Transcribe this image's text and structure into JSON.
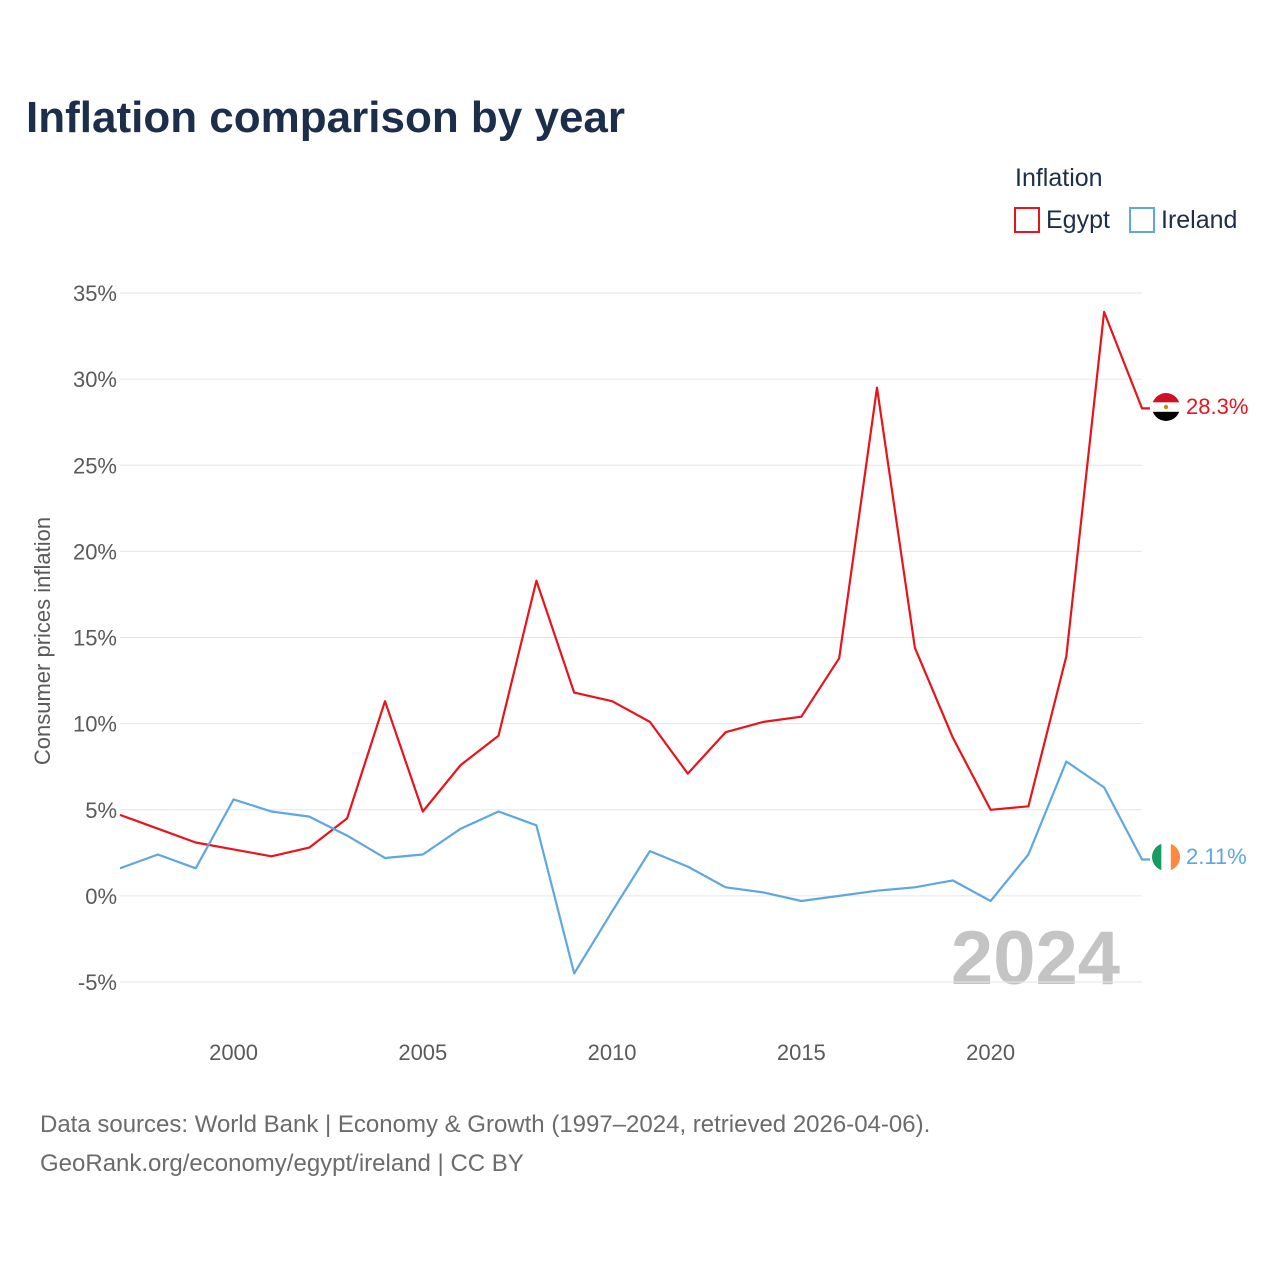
{
  "title": "Inflation comparison by year",
  "legend": {
    "title": "Inflation",
    "items": [
      {
        "label": "Egypt",
        "color": "#e8141c"
      },
      {
        "label": "Ireland",
        "color": "#5ea7e1"
      }
    ]
  },
  "current_year": "2024",
  "footer": {
    "line1": "Data sources: World Bank | Economy & Growth (1997–2024, retrieved 2026-04-06).",
    "line2": "GeoRank.org/economy/egypt/ireland | CC BY"
  },
  "chart_data": {
    "type": "line",
    "title": "Inflation comparison by year",
    "xlabel": "",
    "ylabel": "Consumer prices inflation",
    "x": [
      1997,
      1998,
      1999,
      2000,
      2001,
      2002,
      2003,
      2004,
      2005,
      2006,
      2007,
      2008,
      2009,
      2010,
      2011,
      2012,
      2013,
      2014,
      2015,
      2016,
      2017,
      2018,
      2019,
      2020,
      2021,
      2022,
      2023,
      2024
    ],
    "xlim": [
      1997,
      2024
    ],
    "ylim": [
      -5,
      35
    ],
    "x_ticks": [
      2000,
      2005,
      2010,
      2015,
      2020
    ],
    "x_tick_labels": [
      "2000",
      "2005",
      "2010",
      "2015",
      "2020"
    ],
    "y_ticks": [
      -5,
      0,
      5,
      10,
      15,
      20,
      25,
      30,
      35
    ],
    "y_tick_labels": [
      "-5%",
      "0%",
      "5%",
      "10%",
      "15%",
      "20%",
      "25%",
      "30%",
      "35%"
    ],
    "grid": true,
    "legend_position": "top-right",
    "series": [
      {
        "name": "Egypt",
        "color": "#e8141c",
        "end_label": "28.3%",
        "values": [
          4.7,
          3.9,
          3.1,
          2.7,
          2.3,
          2.8,
          4.5,
          11.3,
          4.9,
          7.6,
          9.3,
          18.3,
          11.8,
          11.3,
          10.1,
          7.1,
          9.5,
          10.1,
          10.4,
          13.8,
          29.5,
          14.4,
          9.2,
          5.0,
          5.2,
          13.9,
          33.9,
          28.3
        ]
      },
      {
        "name": "Ireland",
        "color": "#5ea7e1",
        "end_label": "2.11%",
        "values": [
          1.6,
          2.4,
          1.6,
          5.6,
          4.9,
          4.6,
          3.5,
          2.2,
          2.4,
          3.9,
          4.9,
          4.1,
          -4.5,
          -0.9,
          2.6,
          1.7,
          0.5,
          0.2,
          -0.3,
          0.0,
          0.3,
          0.5,
          0.9,
          -0.3,
          2.4,
          7.8,
          6.3,
          2.11
        ]
      }
    ]
  }
}
